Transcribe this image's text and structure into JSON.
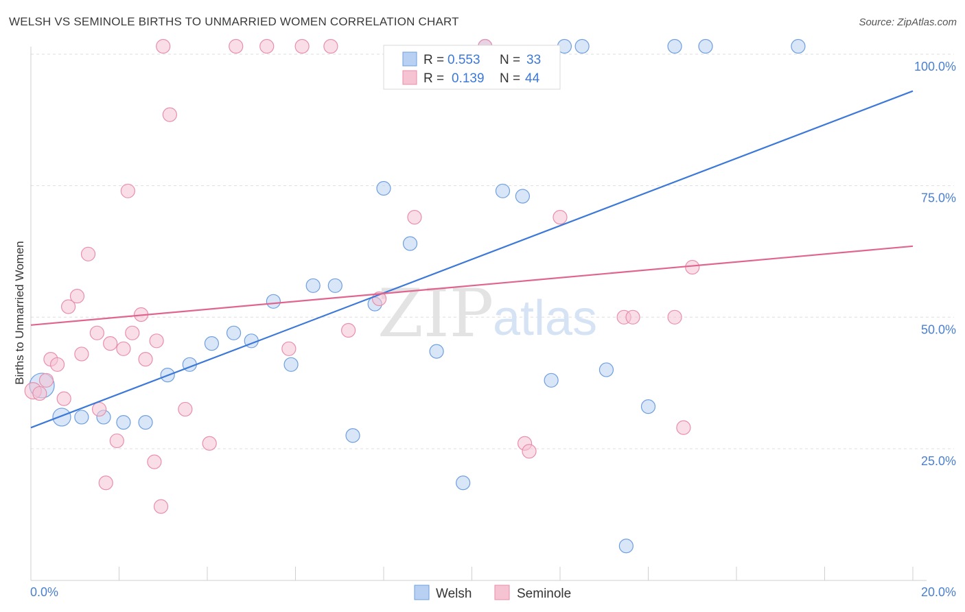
{
  "header": {
    "title": "WELSH VS SEMINOLE BIRTHS TO UNMARRIED WOMEN CORRELATION CHART",
    "source": "Source: ZipAtlas.com"
  },
  "watermark": {
    "zip": "ZIP",
    "atlas": "atlas"
  },
  "legend": {
    "r_label": "R =",
    "n_label": "N =",
    "items": [
      {
        "name": "Welsh",
        "r": "0.553",
        "n": "33",
        "fill": "#b8d1f3",
        "stroke": "#6d9ee0"
      },
      {
        "name": "Seminole",
        "r": "0.139",
        "n": "44",
        "fill": "#f6c3d3",
        "stroke": "#e98eaa"
      }
    ]
  },
  "chart_data": {
    "type": "scatter",
    "ylabel": "Births to Unmarried Women",
    "xlim": [
      0,
      20
    ],
    "ylim": [
      0,
      105
    ],
    "x_tick_labels": [
      {
        "value": 0,
        "label": "0.0%"
      },
      {
        "value": 20,
        "label": "20.0%"
      }
    ],
    "y_tick_labels": [
      {
        "value": 25,
        "label": "25.0%"
      },
      {
        "value": 50,
        "label": "50.0%"
      },
      {
        "value": 75,
        "label": "75.0%"
      },
      {
        "value": 100,
        "label": "100.0%"
      }
    ],
    "x_minor_ticks": [
      2,
      4,
      6,
      8,
      10,
      12,
      14,
      16,
      18,
      20
    ],
    "colors": {
      "welsh": "#3b78d8",
      "seminole": "#e0658e"
    },
    "series": [
      {
        "name": "Welsh",
        "points": [
          [
            0.25,
            37,
            18
          ],
          [
            0.7,
            31,
            13
          ],
          [
            1.15,
            31,
            10
          ],
          [
            1.65,
            31,
            10
          ],
          [
            2.1,
            30,
            10
          ],
          [
            2.6,
            30,
            10
          ],
          [
            3.1,
            39,
            10
          ],
          [
            3.6,
            41,
            10
          ],
          [
            4.1,
            45,
            10
          ],
          [
            4.6,
            47,
            10
          ],
          [
            5.0,
            45.5,
            10
          ],
          [
            5.5,
            53,
            10
          ],
          [
            5.9,
            41,
            10
          ],
          [
            6.4,
            56,
            10
          ],
          [
            6.9,
            56,
            10
          ],
          [
            7.3,
            27.5,
            10
          ],
          [
            7.8,
            52.5,
            10
          ],
          [
            8.0,
            74.5,
            10
          ],
          [
            8.6,
            64,
            10
          ],
          [
            9.2,
            43.5,
            10
          ],
          [
            9.8,
            18.5,
            10
          ],
          [
            10.3,
            101.5,
            10
          ],
          [
            10.7,
            74,
            10
          ],
          [
            11.15,
            73,
            10
          ],
          [
            11.8,
            38,
            10
          ],
          [
            12.1,
            101.5,
            10
          ],
          [
            12.5,
            101.5,
            10
          ],
          [
            13.05,
            40,
            10
          ],
          [
            13.5,
            6.5,
            10
          ],
          [
            14.0,
            33,
            10
          ],
          [
            14.6,
            101.5,
            10
          ],
          [
            15.3,
            101.5,
            10
          ],
          [
            17.4,
            101.5,
            10
          ]
        ],
        "trend": {
          "x": [
            0,
            20
          ],
          "y": [
            29,
            93
          ]
        }
      },
      {
        "name": "Seminole",
        "points": [
          [
            0.05,
            36,
            12
          ],
          [
            0.2,
            35.5,
            10
          ],
          [
            0.35,
            38,
            10
          ],
          [
            0.45,
            42,
            10
          ],
          [
            0.6,
            41,
            10
          ],
          [
            0.75,
            34.5,
            10
          ],
          [
            0.85,
            52,
            10
          ],
          [
            1.05,
            54,
            10
          ],
          [
            1.15,
            43,
            10
          ],
          [
            1.3,
            62,
            10
          ],
          [
            1.5,
            47,
            10
          ],
          [
            1.55,
            32.5,
            10
          ],
          [
            1.7,
            18.5,
            10
          ],
          [
            1.8,
            45,
            10
          ],
          [
            1.95,
            26.5,
            10
          ],
          [
            2.1,
            44,
            10
          ],
          [
            2.2,
            74,
            10
          ],
          [
            2.3,
            47,
            10
          ],
          [
            2.5,
            50.5,
            10
          ],
          [
            2.6,
            42,
            10
          ],
          [
            2.8,
            22.5,
            10
          ],
          [
            2.85,
            45.5,
            10
          ],
          [
            2.95,
            14,
            10
          ],
          [
            3.0,
            101.5,
            10
          ],
          [
            3.15,
            88.5,
            10
          ],
          [
            3.5,
            32.5,
            10
          ],
          [
            4.05,
            26,
            10
          ],
          [
            4.65,
            101.5,
            10
          ],
          [
            5.35,
            101.5,
            10
          ],
          [
            5.85,
            44,
            10
          ],
          [
            6.15,
            101.5,
            10
          ],
          [
            6.8,
            101.5,
            10
          ],
          [
            7.2,
            47.5,
            10
          ],
          [
            7.9,
            53.5,
            10
          ],
          [
            8.7,
            69,
            10
          ],
          [
            10.3,
            101.5,
            10
          ],
          [
            11.2,
            26,
            10
          ],
          [
            11.3,
            24.5,
            10
          ],
          [
            12.0,
            69,
            10
          ],
          [
            13.45,
            50,
            10
          ],
          [
            13.65,
            50,
            10
          ],
          [
            14.6,
            50,
            10
          ],
          [
            14.8,
            29,
            10
          ],
          [
            15.0,
            59.5,
            10
          ]
        ],
        "trend": {
          "x": [
            0,
            20
          ],
          "y": [
            48.5,
            63.5
          ]
        }
      }
    ]
  }
}
